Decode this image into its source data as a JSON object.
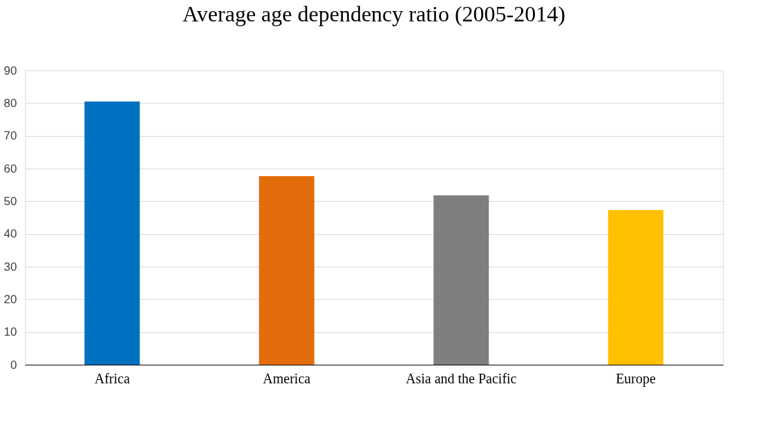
{
  "chart_data": {
    "type": "bar",
    "title": "Average age dependency ratio (2005-2014)",
    "categories": [
      "Africa",
      "America",
      "Asia and the Pacific",
      "Europe"
    ],
    "values": [
      80.5,
      57.7,
      51.8,
      47.3
    ],
    "colors": [
      "#0070c0",
      "#e36c0a",
      "#7f7f7f",
      "#ffc000"
    ],
    "ylim": [
      0,
      90
    ],
    "yticks": [
      0,
      10,
      20,
      30,
      40,
      50,
      60,
      70,
      80,
      90
    ],
    "grid": "y",
    "legend": false
  }
}
